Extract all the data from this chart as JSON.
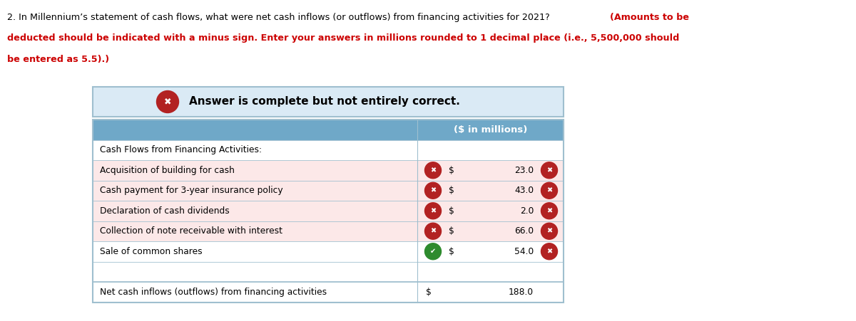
{
  "q_line1_black": "2. In Millennium’s statement of cash flows, what were net cash inflows (or outflows) from financing activities for 2021? ",
  "q_line1_bold_red": "(Amounts to be",
  "q_line2": "deducted should be indicated with a minus sign. Enter your answers in millions rounded to 1 decimal place (i.e., 5,500,000 should",
  "q_line3": "be entered as 5.5).)",
  "banner_text": "Answer is complete but not entirely correct.",
  "banner_bg": "#daeaf5",
  "banner_border": "#9fbfcf",
  "header_bg": "#6fa8c8",
  "header_text": "($ in millions)",
  "row_bg_pink": "#fce8e8",
  "row_bg_white": "#ffffff",
  "table_border": "#9fbfcf",
  "rows": [
    {
      "label": "Cash Flows from Financing Activities:",
      "icon": null,
      "dollar": false,
      "value": null,
      "value_icon": null,
      "bg": "white"
    },
    {
      "label": "Acquisition of building for cash",
      "icon": "x_red",
      "dollar": true,
      "value": "23.0",
      "value_icon": "x_red",
      "bg": "pink"
    },
    {
      "label": "Cash payment for 3-year insurance policy",
      "icon": "x_red",
      "dollar": true,
      "value": "43.0",
      "value_icon": "x_red",
      "bg": "pink"
    },
    {
      "label": "Declaration of cash dividends",
      "icon": "x_red",
      "dollar": true,
      "value": "2.0",
      "value_icon": "x_red",
      "bg": "pink"
    },
    {
      "label": "Collection of note receivable with interest",
      "icon": "x_red",
      "dollar": true,
      "value": "66.0",
      "value_icon": "x_red",
      "bg": "pink"
    },
    {
      "label": "Sale of common shares",
      "icon": "check_green",
      "dollar": true,
      "value": "54.0",
      "value_icon": "x_red",
      "bg": "white"
    },
    {
      "label": "",
      "icon": null,
      "dollar": false,
      "value": null,
      "value_icon": null,
      "bg": "white"
    },
    {
      "label": "Net cash inflows (outflows) from financing activities",
      "icon": null,
      "dollar": true,
      "value": "188.0",
      "value_icon": null,
      "bg": "white"
    }
  ],
  "x_icon_color": "#b22222",
  "check_icon_color": "#2e8b2e",
  "bold_red_color": "#cc0000",
  "figw": 12.0,
  "figh": 4.51
}
